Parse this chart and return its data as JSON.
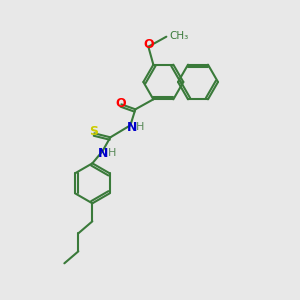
{
  "background_color": "#e8e8e8",
  "bond_color": "#3a7a3a",
  "atom_colors": {
    "O": "#ff0000",
    "N": "#0000cc",
    "S": "#cccc00",
    "C": "#3a7a3a",
    "H": "#5a8a5a"
  },
  "figsize": [
    3.0,
    3.0
  ],
  "dpi": 100
}
